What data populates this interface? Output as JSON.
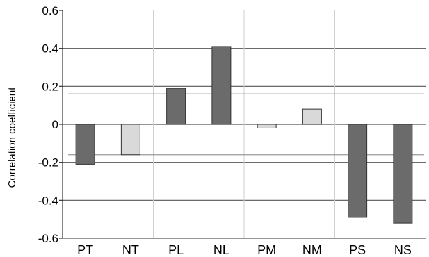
{
  "chart_data": {
    "type": "bar",
    "title": "",
    "xlabel": "",
    "ylabel": "Correlation coefficient",
    "ylim": [
      -0.6,
      0.6
    ],
    "yticks": [
      -0.6,
      -0.4,
      -0.2,
      0,
      0.2,
      0.4,
      0.6
    ],
    "ytick_labels": [
      "-0.6",
      "-0.4",
      "-0.2",
      "0",
      "0.2",
      "0.4",
      "0.6"
    ],
    "categories": [
      "PT",
      "NT",
      "PL",
      "NL",
      "PM",
      "NM",
      "PS",
      "NS"
    ],
    "values": [
      -0.21,
      -0.16,
      0.19,
      0.41,
      -0.02,
      0.08,
      -0.49,
      -0.52
    ],
    "bar_colors": [
      "#6b6b6b",
      "#d9d9d9",
      "#6b6b6b",
      "#6b6b6b",
      "#d9d9d9",
      "#d9d9d9",
      "#6b6b6b",
      "#6b6b6b"
    ],
    "threshold_lines": [
      0.16,
      -0.16
    ],
    "grid": true,
    "legend": "none"
  }
}
